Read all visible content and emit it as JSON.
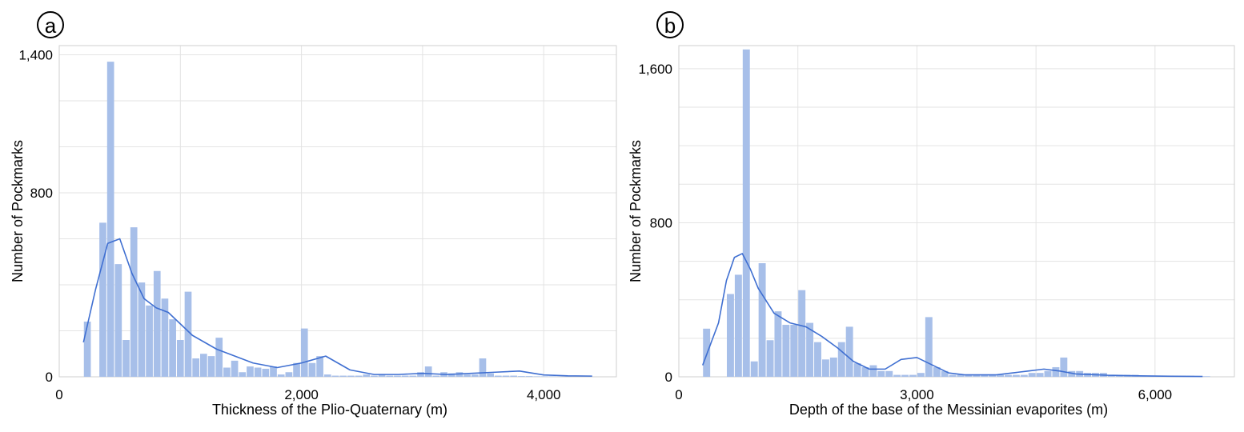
{
  "panels": {
    "a": {
      "label": "a"
    },
    "b": {
      "label": "b"
    }
  },
  "colors": {
    "bar": "#a7bfe9",
    "kde_line": "#3f6fd1",
    "grid": "#e3e3e3",
    "frame": "#cfcfcf"
  },
  "chart_data": [
    {
      "type": "bar",
      "title": "",
      "xlabel": "Thickness of the Plio-Quaternary (m)",
      "ylabel": "Number of Pockmarks",
      "xlim": [
        0,
        4600
      ],
      "ylim": [
        0,
        1440
      ],
      "xticks": [
        0,
        2000,
        4000
      ],
      "xtick_labels": [
        "0",
        "2,000",
        "4,000"
      ],
      "yticks": [
        0,
        800,
        1400
      ],
      "ytick_labels": [
        "0",
        "800",
        "1,400"
      ],
      "grid": true,
      "bin_width": 64,
      "bins_start": 200,
      "values": [
        240,
        0,
        670,
        1370,
        490,
        160,
        650,
        410,
        310,
        460,
        340,
        250,
        160,
        370,
        80,
        100,
        90,
        170,
        40,
        70,
        20,
        45,
        40,
        35,
        45,
        10,
        20,
        60,
        210,
        60,
        90,
        10,
        5,
        5,
        5,
        5,
        10,
        5,
        10,
        5,
        5,
        5,
        5,
        20,
        45,
        5,
        20,
        15,
        20,
        10,
        10,
        80,
        15,
        5,
        5,
        5,
        3,
        3,
        2,
        2,
        2,
        1,
        1
      ],
      "kde": {
        "x": [
          200,
          300,
          400,
          500,
          600,
          700,
          800,
          900,
          1000,
          1100,
          1200,
          1300,
          1400,
          1500,
          1600,
          1800,
          2000,
          2200,
          2400,
          2600,
          2800,
          3000,
          3200,
          3400,
          3600,
          3800,
          4000,
          4200,
          4400
        ],
        "y": [
          150,
          380,
          580,
          600,
          450,
          340,
          300,
          280,
          230,
          180,
          150,
          120,
          100,
          80,
          60,
          40,
          60,
          90,
          30,
          10,
          10,
          15,
          10,
          15,
          20,
          25,
          8,
          4,
          3
        ]
      }
    },
    {
      "type": "bar",
      "title": "",
      "xlabel": "Depth of the base of the Messinian evaporites (m)",
      "ylabel": "Number of Pockmarks",
      "xlim": [
        0,
        7000
      ],
      "ylim": [
        0,
        1720
      ],
      "xticks": [
        0,
        3000,
        6000
      ],
      "xtick_labels": [
        "0",
        "3,000",
        "6,000"
      ],
      "yticks": [
        0,
        800,
        1600
      ],
      "ytick_labels": [
        "0",
        "800",
        "1,600"
      ],
      "grid": true,
      "bin_width": 100,
      "bins_start": 300,
      "values": [
        250,
        0,
        0,
        430,
        530,
        1700,
        80,
        590,
        190,
        340,
        270,
        270,
        450,
        280,
        180,
        90,
        100,
        180,
        260,
        70,
        50,
        60,
        30,
        30,
        10,
        10,
        10,
        20,
        310,
        50,
        30,
        10,
        10,
        10,
        10,
        10,
        10,
        10,
        10,
        10,
        10,
        20,
        20,
        30,
        50,
        100,
        30,
        30,
        20,
        20,
        20,
        10,
        10,
        10,
        10,
        5,
        5,
        5,
        5,
        5,
        5,
        5,
        3,
        3
      ],
      "kde": {
        "x": [
          300,
          500,
          600,
          700,
          800,
          900,
          1000,
          1200,
          1400,
          1600,
          1800,
          2000,
          2200,
          2400,
          2600,
          2800,
          3000,
          3200,
          3400,
          3600,
          3800,
          4000,
          4200,
          4400,
          4600,
          4800,
          5000,
          5400,
          5800,
          6200,
          6600
        ],
        "y": [
          60,
          280,
          500,
          620,
          640,
          560,
          460,
          330,
          280,
          260,
          210,
          150,
          80,
          40,
          40,
          90,
          100,
          60,
          20,
          10,
          10,
          10,
          20,
          30,
          40,
          30,
          15,
          8,
          5,
          3,
          2
        ]
      }
    }
  ]
}
